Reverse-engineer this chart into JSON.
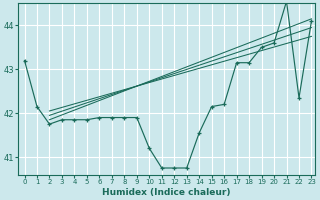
{
  "xlabel": "Humidex (Indice chaleur)",
  "bg_color": "#cce8ec",
  "grid_color": "#ffffff",
  "line_color": "#1a6b5a",
  "xlim": [
    0,
    23
  ],
  "ylim": [
    40.6,
    44.5
  ],
  "yticks": [
    41,
    42,
    43,
    44
  ],
  "xticks": [
    0,
    1,
    2,
    3,
    4,
    5,
    6,
    7,
    8,
    9,
    10,
    11,
    12,
    13,
    14,
    15,
    16,
    17,
    18,
    19,
    20,
    21,
    22,
    23
  ],
  "main_line": {
    "x": [
      0,
      1,
      2,
      3,
      4,
      5,
      6,
      7,
      8,
      9,
      10,
      11,
      12,
      13,
      14,
      15,
      16,
      17,
      18,
      19,
      20,
      21,
      22,
      23
    ],
    "y": [
      43.2,
      42.15,
      41.75,
      41.85,
      41.85,
      41.85,
      41.9,
      41.9,
      41.9,
      41.9,
      41.2,
      40.75,
      40.75,
      40.75,
      41.55,
      42.15,
      42.2,
      43.15,
      43.15,
      43.5,
      43.6,
      44.55,
      42.35,
      44.1
    ]
  },
  "trend_lines": [
    {
      "x": [
        2,
        23
      ],
      "y": [
        41.85,
        44.15
      ]
    },
    {
      "x": [
        2,
        23
      ],
      "y": [
        41.95,
        43.95
      ]
    },
    {
      "x": [
        2,
        23
      ],
      "y": [
        42.05,
        43.75
      ]
    }
  ]
}
